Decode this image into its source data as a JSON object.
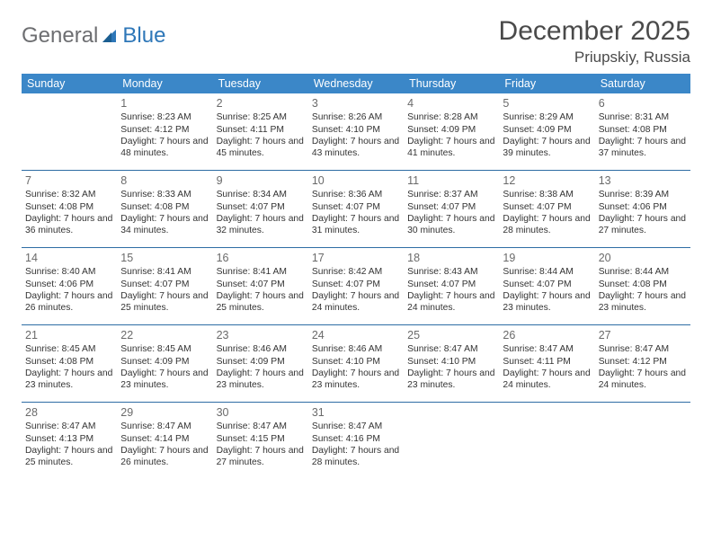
{
  "logo": {
    "word1": "General",
    "word2": "Blue"
  },
  "title": {
    "month": "December 2025",
    "location": "Priupskiy, Russia"
  },
  "colors": {
    "header_bg": "#3b87c8",
    "header_text": "#ffffff",
    "rule": "#2e6da4",
    "text": "#333333",
    "title_text": "#4a4a4a",
    "logo_grey": "#6d6e71",
    "logo_blue": "#2e77b8"
  },
  "day_headers": [
    "Sunday",
    "Monday",
    "Tuesday",
    "Wednesday",
    "Thursday",
    "Friday",
    "Saturday"
  ],
  "weeks": [
    [
      null,
      {
        "n": "1",
        "sr": "Sunrise: 8:23 AM",
        "ss": "Sunset: 4:12 PM",
        "dl": "Daylight: 7 hours and 48 minutes."
      },
      {
        "n": "2",
        "sr": "Sunrise: 8:25 AM",
        "ss": "Sunset: 4:11 PM",
        "dl": "Daylight: 7 hours and 45 minutes."
      },
      {
        "n": "3",
        "sr": "Sunrise: 8:26 AM",
        "ss": "Sunset: 4:10 PM",
        "dl": "Daylight: 7 hours and 43 minutes."
      },
      {
        "n": "4",
        "sr": "Sunrise: 8:28 AM",
        "ss": "Sunset: 4:09 PM",
        "dl": "Daylight: 7 hours and 41 minutes."
      },
      {
        "n": "5",
        "sr": "Sunrise: 8:29 AM",
        "ss": "Sunset: 4:09 PM",
        "dl": "Daylight: 7 hours and 39 minutes."
      },
      {
        "n": "6",
        "sr": "Sunrise: 8:31 AM",
        "ss": "Sunset: 4:08 PM",
        "dl": "Daylight: 7 hours and 37 minutes."
      }
    ],
    [
      {
        "n": "7",
        "sr": "Sunrise: 8:32 AM",
        "ss": "Sunset: 4:08 PM",
        "dl": "Daylight: 7 hours and 36 minutes."
      },
      {
        "n": "8",
        "sr": "Sunrise: 8:33 AM",
        "ss": "Sunset: 4:08 PM",
        "dl": "Daylight: 7 hours and 34 minutes."
      },
      {
        "n": "9",
        "sr": "Sunrise: 8:34 AM",
        "ss": "Sunset: 4:07 PM",
        "dl": "Daylight: 7 hours and 32 minutes."
      },
      {
        "n": "10",
        "sr": "Sunrise: 8:36 AM",
        "ss": "Sunset: 4:07 PM",
        "dl": "Daylight: 7 hours and 31 minutes."
      },
      {
        "n": "11",
        "sr": "Sunrise: 8:37 AM",
        "ss": "Sunset: 4:07 PM",
        "dl": "Daylight: 7 hours and 30 minutes."
      },
      {
        "n": "12",
        "sr": "Sunrise: 8:38 AM",
        "ss": "Sunset: 4:07 PM",
        "dl": "Daylight: 7 hours and 28 minutes."
      },
      {
        "n": "13",
        "sr": "Sunrise: 8:39 AM",
        "ss": "Sunset: 4:06 PM",
        "dl": "Daylight: 7 hours and 27 minutes."
      }
    ],
    [
      {
        "n": "14",
        "sr": "Sunrise: 8:40 AM",
        "ss": "Sunset: 4:06 PM",
        "dl": "Daylight: 7 hours and 26 minutes."
      },
      {
        "n": "15",
        "sr": "Sunrise: 8:41 AM",
        "ss": "Sunset: 4:07 PM",
        "dl": "Daylight: 7 hours and 25 minutes."
      },
      {
        "n": "16",
        "sr": "Sunrise: 8:41 AM",
        "ss": "Sunset: 4:07 PM",
        "dl": "Daylight: 7 hours and 25 minutes."
      },
      {
        "n": "17",
        "sr": "Sunrise: 8:42 AM",
        "ss": "Sunset: 4:07 PM",
        "dl": "Daylight: 7 hours and 24 minutes."
      },
      {
        "n": "18",
        "sr": "Sunrise: 8:43 AM",
        "ss": "Sunset: 4:07 PM",
        "dl": "Daylight: 7 hours and 24 minutes."
      },
      {
        "n": "19",
        "sr": "Sunrise: 8:44 AM",
        "ss": "Sunset: 4:07 PM",
        "dl": "Daylight: 7 hours and 23 minutes."
      },
      {
        "n": "20",
        "sr": "Sunrise: 8:44 AM",
        "ss": "Sunset: 4:08 PM",
        "dl": "Daylight: 7 hours and 23 minutes."
      }
    ],
    [
      {
        "n": "21",
        "sr": "Sunrise: 8:45 AM",
        "ss": "Sunset: 4:08 PM",
        "dl": "Daylight: 7 hours and 23 minutes."
      },
      {
        "n": "22",
        "sr": "Sunrise: 8:45 AM",
        "ss": "Sunset: 4:09 PM",
        "dl": "Daylight: 7 hours and 23 minutes."
      },
      {
        "n": "23",
        "sr": "Sunrise: 8:46 AM",
        "ss": "Sunset: 4:09 PM",
        "dl": "Daylight: 7 hours and 23 minutes."
      },
      {
        "n": "24",
        "sr": "Sunrise: 8:46 AM",
        "ss": "Sunset: 4:10 PM",
        "dl": "Daylight: 7 hours and 23 minutes."
      },
      {
        "n": "25",
        "sr": "Sunrise: 8:47 AM",
        "ss": "Sunset: 4:10 PM",
        "dl": "Daylight: 7 hours and 23 minutes."
      },
      {
        "n": "26",
        "sr": "Sunrise: 8:47 AM",
        "ss": "Sunset: 4:11 PM",
        "dl": "Daylight: 7 hours and 24 minutes."
      },
      {
        "n": "27",
        "sr": "Sunrise: 8:47 AM",
        "ss": "Sunset: 4:12 PM",
        "dl": "Daylight: 7 hours and 24 minutes."
      }
    ],
    [
      {
        "n": "28",
        "sr": "Sunrise: 8:47 AM",
        "ss": "Sunset: 4:13 PM",
        "dl": "Daylight: 7 hours and 25 minutes."
      },
      {
        "n": "29",
        "sr": "Sunrise: 8:47 AM",
        "ss": "Sunset: 4:14 PM",
        "dl": "Daylight: 7 hours and 26 minutes."
      },
      {
        "n": "30",
        "sr": "Sunrise: 8:47 AM",
        "ss": "Sunset: 4:15 PM",
        "dl": "Daylight: 7 hours and 27 minutes."
      },
      {
        "n": "31",
        "sr": "Sunrise: 8:47 AM",
        "ss": "Sunset: 4:16 PM",
        "dl": "Daylight: 7 hours and 28 minutes."
      },
      null,
      null,
      null
    ]
  ]
}
